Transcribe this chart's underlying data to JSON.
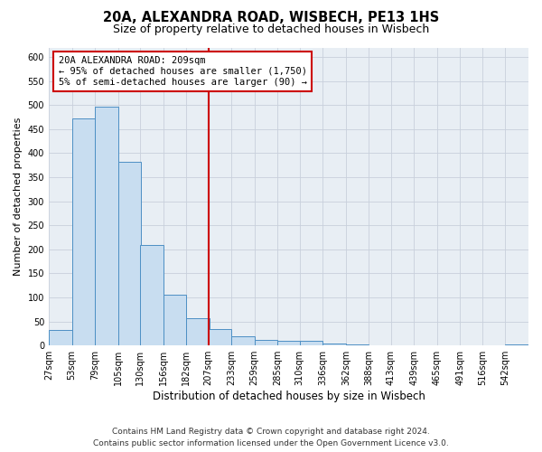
{
  "title1": "20A, ALEXANDRA ROAD, WISBECH, PE13 1HS",
  "title2": "Size of property relative to detached houses in Wisbech",
  "xlabel": "Distribution of detached houses by size in Wisbech",
  "ylabel": "Number of detached properties",
  "bin_labels": [
    "27sqm",
    "53sqm",
    "79sqm",
    "105sqm",
    "130sqm",
    "156sqm",
    "182sqm",
    "207sqm",
    "233sqm",
    "259sqm",
    "285sqm",
    "310sqm",
    "336sqm",
    "362sqm",
    "388sqm",
    "413sqm",
    "439sqm",
    "465sqm",
    "491sqm",
    "516sqm",
    "542sqm"
  ],
  "bin_edges": [
    27,
    53,
    79,
    105,
    130,
    156,
    182,
    207,
    233,
    259,
    285,
    310,
    336,
    362,
    388,
    413,
    439,
    465,
    491,
    516,
    542
  ],
  "bar_heights": [
    32,
    473,
    497,
    382,
    210,
    105,
    57,
    35,
    20,
    12,
    10,
    10,
    5,
    2,
    1,
    1,
    1,
    0,
    1,
    0,
    2
  ],
  "bar_color": "#c8ddf0",
  "bar_edge_color": "#4d8fc4",
  "grid_color": "#c8d0dc",
  "bg_color": "#e8eef4",
  "vline_x": 207,
  "vline_color": "#cc0000",
  "vline_lw": 1.5,
  "annotation_title": "20A ALEXANDRA ROAD: 209sqm",
  "annotation_line1": "← 95% of detached houses are smaller (1,750)",
  "annotation_line2": "5% of semi-detached houses are larger (90) →",
  "annotation_box_edge": "#cc0000",
  "ylim": [
    0,
    620
  ],
  "yticks": [
    0,
    50,
    100,
    150,
    200,
    250,
    300,
    350,
    400,
    450,
    500,
    550,
    600
  ],
  "footnote1": "Contains HM Land Registry data © Crown copyright and database right 2024.",
  "footnote2": "Contains public sector information licensed under the Open Government Licence v3.0.",
  "title1_fontsize": 10.5,
  "title2_fontsize": 9,
  "xlabel_fontsize": 8.5,
  "ylabel_fontsize": 8,
  "tick_fontsize": 7,
  "annotation_fontsize": 7.5,
  "footnote_fontsize": 6.5
}
